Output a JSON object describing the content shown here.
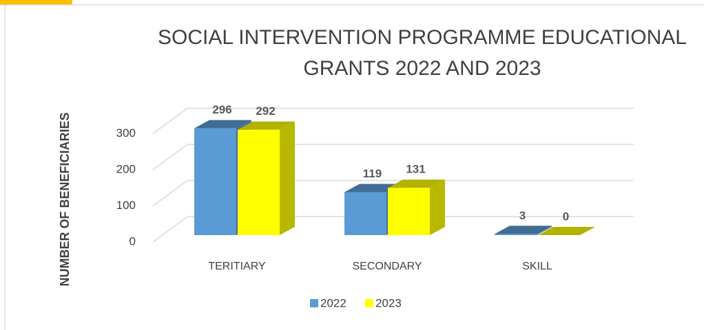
{
  "chart_data": {
    "type": "bar3d",
    "title": [
      "SOCIAL INTERVENTION PROGRAMME EDUCATIONAL",
      "GRANTS 2022 AND 2023"
    ],
    "y_label": "NUMBER OF BENEFICIARIES",
    "categories": [
      "TERITIARY",
      "SECONDARY",
      "SKILL"
    ],
    "series": [
      {
        "name": "2022",
        "color": "#5b9bd5",
        "values": [
          296,
          119,
          3
        ]
      },
      {
        "name": "2023",
        "color": "#ffff00",
        "values": [
          292,
          131,
          0
        ]
      }
    ],
    "ylim": [
      0,
      300
    ],
    "yticks": [
      0,
      100,
      200,
      300
    ],
    "grid": true,
    "legend": "bottom"
  }
}
